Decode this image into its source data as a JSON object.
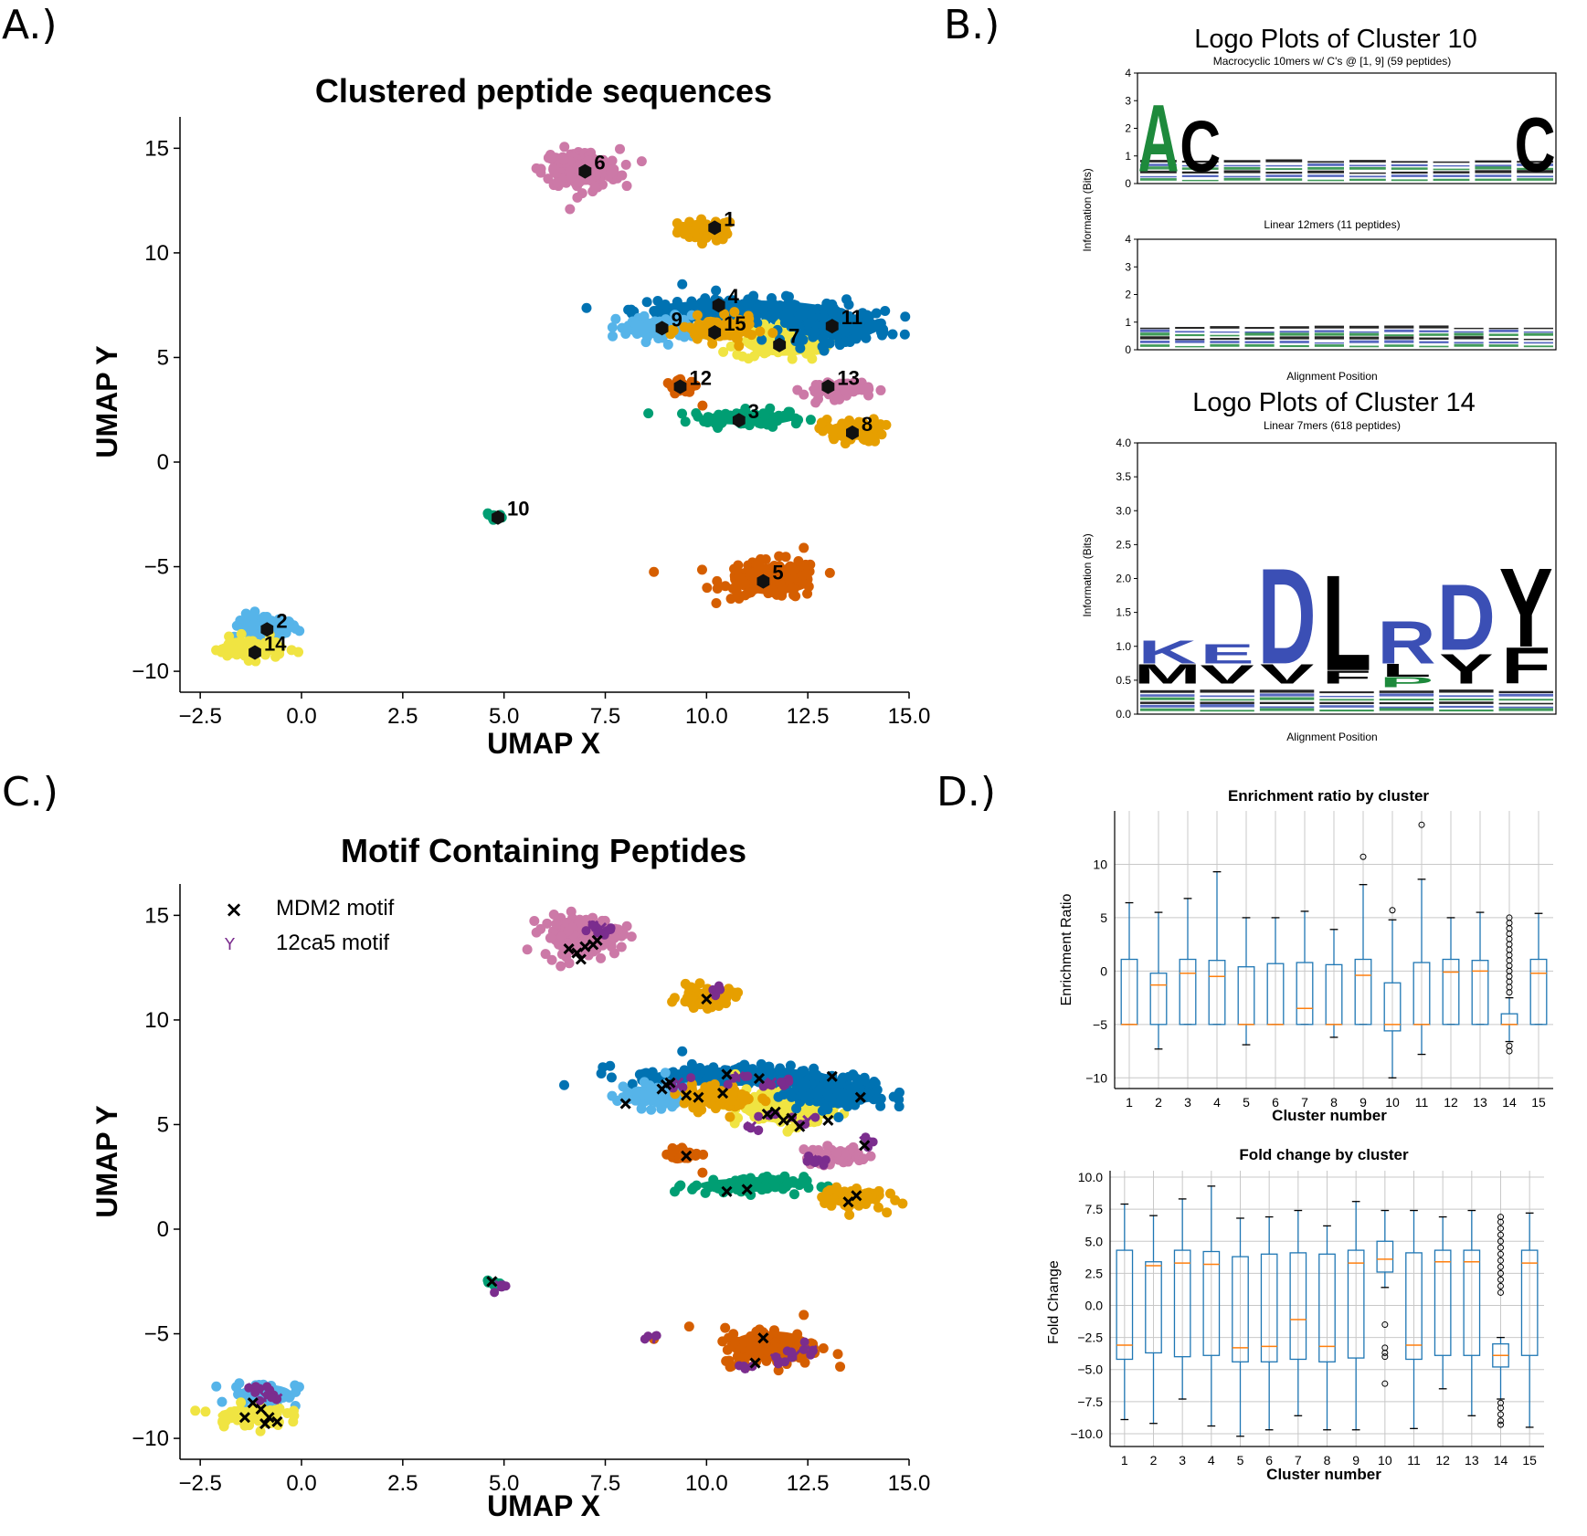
{
  "panels": {
    "a": "A.)",
    "b": "B.)",
    "c": "C.)",
    "d": "D.)"
  },
  "colors": {
    "1": "#E69F00",
    "2": "#56B4E9",
    "3": "#009E73",
    "4": "#0072B2",
    "5": "#D55E00",
    "6": "#CC79A7",
    "7": "#F0E442",
    "8": "#E69F00",
    "9": "#56B4E9",
    "10": "#009E73",
    "11": "#0072B2",
    "12": "#D55E00",
    "13": "#CC79A7",
    "14": "#F0E442",
    "15": "#E69F00",
    "mdm2": "#000000",
    "ca5": "#7B2D8E",
    "logo_green": "#1E8A3C",
    "logo_blue": "#3B4FB5",
    "box": "#1f77b4",
    "median": "#ff7f0e"
  },
  "chart_data": [
    {
      "type": "scatter",
      "id": "umap-clusters",
      "title": "Clustered peptide sequences",
      "xlabel": "UMAP X",
      "ylabel": "UMAP Y",
      "xlim": [
        -3.0,
        15.0
      ],
      "ylim": [
        -11.0,
        16.5
      ],
      "xticks": [
        -2.5,
        0.0,
        2.5,
        5.0,
        7.5,
        10.0,
        12.5,
        15.0
      ],
      "xtick_labels": [
        "−2.5",
        "0.0",
        "2.5",
        "5.0",
        "7.5",
        "10.0",
        "12.5",
        "15.0"
      ],
      "yticks": [
        -10,
        -5,
        0,
        5,
        10,
        15
      ],
      "ytick_labels": [
        "−10",
        "−5",
        "0",
        "5",
        "10",
        "15"
      ],
      "clusters": [
        {
          "label": "1",
          "cx": 10.0,
          "cy": 11.1,
          "rx": 0.7,
          "ry": 0.5,
          "centroid": [
            10.2,
            11.2
          ],
          "n": 60
        },
        {
          "label": "2",
          "cx": -0.9,
          "cy": -7.9,
          "rx": 0.8,
          "ry": 0.6,
          "centroid": [
            -0.85,
            -8.0
          ],
          "n": 60
        },
        {
          "label": "3",
          "cx": 11.0,
          "cy": 2.1,
          "rx": 1.4,
          "ry": 0.4,
          "centroid": [
            10.8,
            2.0
          ],
          "n": 90
        },
        {
          "label": "4",
          "cx": 10.8,
          "cy": 7.3,
          "rx": 2.6,
          "ry": 0.55,
          "centroid": [
            10.3,
            7.5
          ],
          "n": 160
        },
        {
          "label": "5",
          "cx": 11.6,
          "cy": -5.6,
          "rx": 1.2,
          "ry": 0.9,
          "centroid": [
            11.4,
            -5.7
          ],
          "n": 140
        },
        {
          "label": "6",
          "cx": 6.9,
          "cy": 14.0,
          "rx": 0.95,
          "ry": 0.95,
          "centroid": [
            7.0,
            13.9
          ],
          "n": 150
        },
        {
          "label": "7",
          "cx": 11.9,
          "cy": 5.8,
          "rx": 1.2,
          "ry": 0.9,
          "centroid": [
            11.8,
            5.6
          ],
          "n": 120
        },
        {
          "label": "8",
          "cx": 13.6,
          "cy": 1.5,
          "rx": 0.75,
          "ry": 0.55,
          "centroid": [
            13.6,
            1.4
          ],
          "n": 70
        },
        {
          "label": "9",
          "cx": 8.8,
          "cy": 6.4,
          "rx": 1.0,
          "ry": 0.6,
          "centroid": [
            8.9,
            6.4
          ],
          "n": 90
        },
        {
          "label": "10",
          "cx": 4.8,
          "cy": -2.6,
          "rx": 0.2,
          "ry": 0.15,
          "centroid": [
            4.85,
            -2.65
          ],
          "n": 10
        },
        {
          "label": "11",
          "cx": 13.2,
          "cy": 6.5,
          "rx": 1.3,
          "ry": 0.75,
          "centroid": [
            13.1,
            6.5
          ],
          "n": 150
        },
        {
          "label": "12",
          "cx": 9.4,
          "cy": 3.6,
          "rx": 0.4,
          "ry": 0.3,
          "centroid": [
            9.35,
            3.6
          ],
          "n": 30
        },
        {
          "label": "13",
          "cx": 13.2,
          "cy": 3.5,
          "rx": 0.8,
          "ry": 0.45,
          "centroid": [
            13.0,
            3.6
          ],
          "n": 60
        },
        {
          "label": "14",
          "cx": -1.3,
          "cy": -8.9,
          "rx": 0.9,
          "ry": 0.5,
          "centroid": [
            -1.15,
            -9.1
          ],
          "n": 70
        },
        {
          "label": "15",
          "cx": 10.3,
          "cy": 6.3,
          "rx": 0.9,
          "ry": 0.6,
          "centroid": [
            10.2,
            6.2
          ],
          "n": 90
        }
      ]
    },
    {
      "type": "scatter",
      "id": "umap-motifs",
      "title": "Motif Containing Peptides",
      "xlabel": "UMAP X",
      "ylabel": "UMAP Y",
      "xlim": [
        -3.0,
        15.0
      ],
      "ylim": [
        -11.0,
        16.5
      ],
      "legend": [
        {
          "name": "MDM2 motif",
          "marker": "x",
          "color": "#000000"
        },
        {
          "name": "12ca5 motif",
          "marker": "tri_down",
          "color": "#7B2D8E"
        }
      ],
      "legend_position": "top-left",
      "mdm2_points": [
        [
          6.6,
          13.4
        ],
        [
          6.8,
          13.2
        ],
        [
          7.0,
          13.5
        ],
        [
          7.2,
          13.6
        ],
        [
          6.9,
          12.9
        ],
        [
          7.3,
          13.8
        ],
        [
          10.0,
          11.0
        ],
        [
          9.0,
          6.9
        ],
        [
          9.1,
          7.0
        ],
        [
          8.9,
          6.7
        ],
        [
          9.5,
          6.4
        ],
        [
          10.5,
          7.4
        ],
        [
          11.3,
          7.2
        ],
        [
          9.8,
          6.3
        ],
        [
          10.4,
          6.5
        ],
        [
          11.5,
          5.5
        ],
        [
          11.9,
          5.2
        ],
        [
          12.3,
          4.9
        ],
        [
          12.1,
          5.3
        ],
        [
          11.7,
          5.6
        ],
        [
          8.0,
          6.0
        ],
        [
          13.1,
          7.3
        ],
        [
          13.9,
          4.0
        ],
        [
          13.0,
          5.2
        ],
        [
          13.8,
          6.3
        ],
        [
          9.5,
          3.5
        ],
        [
          10.5,
          1.8
        ],
        [
          11.0,
          1.9
        ],
        [
          13.5,
          1.3
        ],
        [
          13.7,
          1.6
        ],
        [
          4.7,
          -2.5
        ],
        [
          11.4,
          -5.2
        ],
        [
          11.2,
          -6.4
        ],
        [
          -1.2,
          -8.3
        ],
        [
          -1.0,
          -8.6
        ],
        [
          -0.8,
          -9.0
        ],
        [
          -0.6,
          -9.2
        ],
        [
          -1.4,
          -9.0
        ],
        [
          -0.9,
          -9.3
        ]
      ],
      "ca5_points": [
        [
          7.2,
          14.5
        ],
        [
          7.4,
          14.4
        ],
        [
          10.3,
          11.4
        ],
        [
          9.3,
          7.0
        ],
        [
          10.8,
          7.3
        ],
        [
          11.6,
          7.0
        ],
        [
          12.0,
          7.0
        ],
        [
          11.1,
          4.9
        ],
        [
          11.5,
          5.5
        ],
        [
          12.5,
          5.2
        ],
        [
          12.6,
          3.3
        ],
        [
          12.9,
          3.2
        ],
        [
          13.9,
          4.2
        ],
        [
          4.9,
          -2.7
        ],
        [
          8.7,
          -5.2
        ],
        [
          11.7,
          -6.2
        ],
        [
          12.2,
          -6.0
        ],
        [
          12.6,
          -5.8
        ],
        [
          11.0,
          -6.6
        ],
        [
          -1.2,
          -7.6
        ],
        [
          -0.6,
          -8.1
        ],
        [
          -0.9,
          -8.0
        ]
      ]
    },
    {
      "type": "logo",
      "id": "logo-cluster-10",
      "title": "Logo Plots of Cluster 10",
      "subplots": [
        {
          "subtitle": "Macrocyclic 10mers w/ C's @ [1, 9] (59 peptides)",
          "ylim": [
            0,
            4
          ],
          "yticks": [
            "0",
            "1",
            "2",
            "3",
            "4"
          ],
          "letters": [
            {
              "pos": 0,
              "char": "A",
              "height": 2.5,
              "color": "#1E8A3C"
            },
            {
              "pos": 1,
              "char": "C",
              "height": 1.9,
              "color": "#000000"
            },
            {
              "pos": 9,
              "char": "C",
              "height": 2.0,
              "color": "#000000"
            }
          ],
          "positions": 10
        },
        {
          "subtitle": "Linear 12mers (11 peptides)",
          "ylim": [
            0,
            4
          ],
          "yticks": [
            "0",
            "1",
            "2",
            "3",
            "4"
          ],
          "letters": [],
          "positions": 12
        }
      ],
      "ylabel": "Information (Bits)",
      "xlabel": "Alignment Position"
    },
    {
      "type": "logo",
      "id": "logo-cluster-14",
      "title": "Logo Plots of Cluster 14",
      "subtitle": "Linear 7mers (618 peptides)",
      "ylabel": "Information (Bits)",
      "xlabel": "Alignment Position",
      "ylim": [
        0,
        4.0
      ],
      "yticks": [
        "0.0",
        "0.5",
        "1.0",
        "1.5",
        "2.0",
        "2.5",
        "3.0",
        "3.5",
        "4.0"
      ],
      "positions": 7,
      "letters": [
        {
          "pos": 0,
          "char": "K",
          "base": 0.75,
          "height": 0.35,
          "color": "#3B4FB5"
        },
        {
          "pos": 0,
          "char": "M",
          "base": 0.45,
          "height": 0.3,
          "color": "#000000"
        },
        {
          "pos": 1,
          "char": "E",
          "base": 0.75,
          "height": 0.3,
          "color": "#3B4FB5"
        },
        {
          "pos": 1,
          "char": "V",
          "base": 0.45,
          "height": 0.28,
          "color": "#000000"
        },
        {
          "pos": 2,
          "char": "D",
          "base": 0.75,
          "height": 1.45,
          "color": "#3B4FB5"
        },
        {
          "pos": 2,
          "char": "V",
          "base": 0.45,
          "height": 0.3,
          "color": "#000000"
        },
        {
          "pos": 3,
          "char": "L",
          "base": 0.65,
          "height": 1.45,
          "color": "#000000"
        },
        {
          "pos": 3,
          "char": "F",
          "base": 0.45,
          "height": 0.2,
          "color": "#000000"
        },
        {
          "pos": 4,
          "char": "R",
          "base": 0.75,
          "height": 0.65,
          "color": "#3B4FB5"
        },
        {
          "pos": 4,
          "char": "L",
          "base": 0.55,
          "height": 0.2,
          "color": "#000000"
        },
        {
          "pos": 4,
          "char": "P",
          "base": 0.4,
          "height": 0.15,
          "color": "#1E8A3C"
        },
        {
          "pos": 5,
          "char": "D",
          "base": 0.95,
          "height": 1.0,
          "color": "#3B4FB5"
        },
        {
          "pos": 5,
          "char": "Y",
          "base": 0.45,
          "height": 0.45,
          "color": "#000000"
        },
        {
          "pos": 6,
          "char": "Y",
          "base": 1.0,
          "height": 1.2,
          "color": "#000000"
        },
        {
          "pos": 6,
          "char": "F",
          "base": 0.45,
          "height": 0.55,
          "color": "#000000"
        }
      ]
    },
    {
      "type": "box",
      "id": "enrichment-box",
      "title": "Enrichment ratio by cluster",
      "xlabel": "Cluster number",
      "ylabel": "Enrichment Ratio",
      "ylim": [
        -11,
        15
      ],
      "yticks": [
        -10,
        -5,
        0,
        5,
        10
      ],
      "ytick_labels": [
        "−10",
        "−5",
        "0",
        "5",
        "10"
      ],
      "categories": [
        "1",
        "2",
        "3",
        "4",
        "5",
        "6",
        "7",
        "8",
        "9",
        "10",
        "11",
        "12",
        "13",
        "14",
        "15"
      ],
      "boxes": [
        {
          "whislo": -5,
          "q1": -5,
          "med": -5,
          "q3": 1.1,
          "whishi": 6.4,
          "fliers": []
        },
        {
          "whislo": -7.3,
          "q1": -5,
          "med": -1.3,
          "q3": -0.2,
          "whishi": 5.5,
          "fliers": []
        },
        {
          "whislo": -5,
          "q1": -5,
          "med": -0.2,
          "q3": 1.1,
          "whishi": 6.8,
          "fliers": []
        },
        {
          "whislo": -5,
          "q1": -5,
          "med": -0.5,
          "q3": 1.0,
          "whishi": 9.3,
          "fliers": []
        },
        {
          "whislo": -6.9,
          "q1": -5,
          "med": -5,
          "q3": 0.4,
          "whishi": 5.0,
          "fliers": []
        },
        {
          "whislo": -5,
          "q1": -5,
          "med": -5,
          "q3": 0.7,
          "whishi": 5.0,
          "fliers": []
        },
        {
          "whislo": -5,
          "q1": -5,
          "med": -3.5,
          "q3": 0.8,
          "whishi": 5.6,
          "fliers": []
        },
        {
          "whislo": -6.2,
          "q1": -5,
          "med": -5,
          "q3": 0.6,
          "whishi": 3.9,
          "fliers": []
        },
        {
          "whislo": -5,
          "q1": -5,
          "med": -0.4,
          "q3": 1.1,
          "whishi": 8.1,
          "fliers": [
            10.7
          ]
        },
        {
          "whislo": -10.0,
          "q1": -5.6,
          "med": -5,
          "q3": -1.1,
          "whishi": 4.8,
          "fliers": [
            5.7
          ]
        },
        {
          "whislo": -7.8,
          "q1": -5,
          "med": -5,
          "q3": 0.8,
          "whishi": 8.6,
          "fliers": [
            13.7
          ]
        },
        {
          "whislo": -5,
          "q1": -5,
          "med": -0.1,
          "q3": 1.1,
          "whishi": 5.0,
          "fliers": []
        },
        {
          "whislo": -5,
          "q1": -5,
          "med": 0.0,
          "q3": 1.0,
          "whishi": 5.5,
          "fliers": []
        },
        {
          "whislo": -6.6,
          "q1": -5,
          "med": -5,
          "q3": -4.0,
          "whishi": -2.5,
          "fliers": [
            5.0,
            4.5,
            4.0,
            3.5,
            3.0,
            2.5,
            2.0,
            1.5,
            1.0,
            0.5,
            0.0,
            -0.5,
            -1.0,
            -1.5,
            -2.0,
            -7.0,
            -7.5
          ]
        },
        {
          "whislo": -5,
          "q1": -5,
          "med": -0.2,
          "q3": 1.1,
          "whishi": 5.4,
          "fliers": []
        }
      ]
    },
    {
      "type": "box",
      "id": "foldchange-box",
      "title": "Fold change by cluster",
      "xlabel": "Cluster number",
      "ylabel": "Fold Change",
      "ylim": [
        -11,
        10.5
      ],
      "yticks": [
        -10.0,
        -7.5,
        -5.0,
        -2.5,
        0.0,
        2.5,
        5.0,
        7.5,
        10.0
      ],
      "ytick_labels": [
        "−10.0",
        "−7.5",
        "−5.0",
        "−2.5",
        "0.0",
        "2.5",
        "5.0",
        "7.5",
        "10.0"
      ],
      "categories": [
        "1",
        "2",
        "3",
        "4",
        "5",
        "6",
        "7",
        "8",
        "9",
        "10",
        "11",
        "12",
        "13",
        "14",
        "15"
      ],
      "boxes": [
        {
          "whislo": -8.9,
          "q1": -4.2,
          "med": -3.1,
          "q3": 4.3,
          "whishi": 7.9,
          "fliers": []
        },
        {
          "whislo": -9.2,
          "q1": -3.7,
          "med": 3.1,
          "q3": 3.4,
          "whishi": 7.0,
          "fliers": []
        },
        {
          "whislo": -7.3,
          "q1": -4.0,
          "med": 3.3,
          "q3": 4.3,
          "whishi": 8.3,
          "fliers": []
        },
        {
          "whislo": -9.4,
          "q1": -3.9,
          "med": 3.2,
          "q3": 4.2,
          "whishi": 9.3,
          "fliers": []
        },
        {
          "whislo": -10.2,
          "q1": -4.4,
          "med": -3.3,
          "q3": 3.8,
          "whishi": 6.8,
          "fliers": []
        },
        {
          "whislo": -9.7,
          "q1": -4.4,
          "med": -3.2,
          "q3": 4.0,
          "whishi": 6.9,
          "fliers": []
        },
        {
          "whislo": -8.6,
          "q1": -4.2,
          "med": -1.1,
          "q3": 4.1,
          "whishi": 7.4,
          "fliers": []
        },
        {
          "whislo": -9.7,
          "q1": -4.4,
          "med": -3.2,
          "q3": 4.0,
          "whishi": 6.2,
          "fliers": []
        },
        {
          "whislo": -9.7,
          "q1": -4.1,
          "med": 3.3,
          "q3": 4.3,
          "whishi": 8.1,
          "fliers": []
        },
        {
          "whislo": 1.4,
          "q1": 2.6,
          "med": 3.6,
          "q3": 5.0,
          "whishi": 7.4,
          "fliers": [
            -1.5,
            -3.3,
            -3.7,
            -4.0,
            -6.1
          ]
        },
        {
          "whislo": -9.6,
          "q1": -4.2,
          "med": -3.1,
          "q3": 4.1,
          "whishi": 7.4,
          "fliers": []
        },
        {
          "whislo": -6.5,
          "q1": -3.9,
          "med": 3.4,
          "q3": 4.3,
          "whishi": 6.9,
          "fliers": []
        },
        {
          "whislo": -8.6,
          "q1": -3.9,
          "med": 3.4,
          "q3": 4.3,
          "whishi": 7.4,
          "fliers": []
        },
        {
          "whislo": -7.3,
          "q1": -4.8,
          "med": -3.9,
          "q3": -3.0,
          "whishi": -2.5,
          "fliers": [
            6.9,
            6.5,
            6.0,
            5.5,
            5.0,
            4.5,
            4.0,
            3.5,
            3.0,
            2.5,
            2.0,
            1.5,
            1.0,
            -7.6,
            -8.0,
            -8.5,
            -9.0,
            -9.3
          ]
        },
        {
          "whislo": -9.5,
          "q1": -3.9,
          "med": 3.3,
          "q3": 4.3,
          "whishi": 7.2,
          "fliers": []
        }
      ]
    }
  ]
}
